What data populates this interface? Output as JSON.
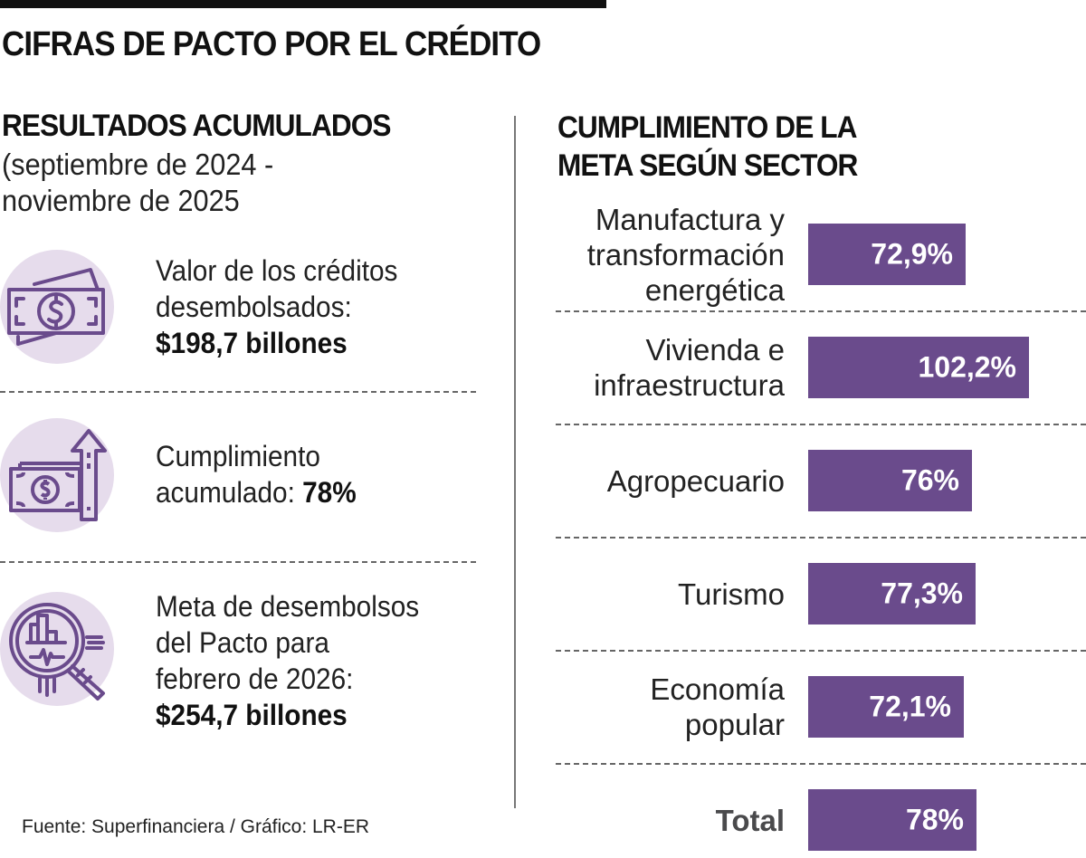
{
  "title": "CIFRAS DE PACTO POR EL CRÉDITO",
  "left": {
    "heading": "RESULTADOS ACUMULADOS",
    "subheading_lines": [
      "(septiembre de 2024 -",
      "noviembre de 2025"
    ],
    "kpis": [
      {
        "icon": "money-bill-icon",
        "lines": [
          "Valor de los créditos",
          "desembolsados:"
        ],
        "value": "$198,7 billones"
      },
      {
        "icon": "money-growth-arrow-icon",
        "lines": [
          "Cumplimiento",
          "acumulado: "
        ],
        "value": "78%"
      },
      {
        "icon": "magnifier-chart-icon",
        "lines": [
          "Meta de desembolsos",
          "del Pacto para",
          "febrero de 2026:"
        ],
        "value": "$254,7 billones"
      }
    ]
  },
  "right": {
    "heading_lines": [
      "CUMPLIMIENTO DE LA",
      "META SEGÚN SECTOR"
    ]
  },
  "colors": {
    "bar": "#6a4b8c",
    "icon_bg": "#e6dcec",
    "icon_stroke": "#6a4b8c"
  },
  "source": "Fuente: Superfinanciera / Gráfico: LR-ER",
  "chart_data": {
    "type": "bar",
    "orientation": "horizontal",
    "title": "CUMPLIMIENTO DE LA META SEGÚN SECTOR",
    "categories": [
      "Manufactura y transformación energética",
      "Vivienda e infraestructura",
      "Agropecuario",
      "Turismo",
      "Economía popular",
      "Total"
    ],
    "category_lines": [
      [
        "Manufactura y",
        "transformación",
        "energética"
      ],
      [
        "Vivienda e",
        "infraestructura"
      ],
      [
        "Agropecuario"
      ],
      [
        "Turismo"
      ],
      [
        "Economía",
        "popular"
      ],
      [
        "Total"
      ]
    ],
    "values": [
      72.9,
      102.2,
      76,
      77.3,
      72.1,
      78
    ],
    "value_labels": [
      "72,9%",
      "102,2%",
      "76%",
      "77,3%",
      "72,1%",
      "78%"
    ],
    "unit": "%",
    "xlim": [
      0,
      102.2
    ],
    "grid": false,
    "legend": "none"
  }
}
